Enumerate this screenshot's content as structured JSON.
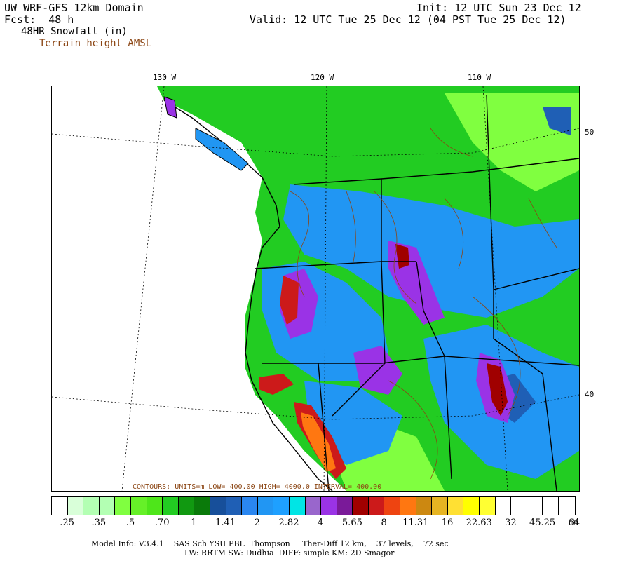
{
  "header": {
    "model_title": "UW WRF-GFS 12km Domain",
    "fcst_label": "Fcst:  48 h",
    "field_label": "48HR Snowfall (in)",
    "terrain_label": "Terrain height AMSL",
    "init_text": "Init: 12 UTC Sun 23 Dec 12",
    "valid_text": "Valid: 12 UTC Tue 25 Dec 12 (04 PST Tue 25 Dec 12)"
  },
  "map": {
    "lon_labels": [
      "130 W",
      "120 W",
      "110 W"
    ],
    "lat_labels": [
      "50",
      "40"
    ],
    "contour_note": "CONTOURS: UNITS=m  LOW= 400.00  HIGH= 4000.0  INTERVAL= 400.00"
  },
  "scale": {
    "colors": [
      "#ffffff",
      "#d9ffd9",
      "#b3ffb3",
      "#b3ffb3",
      "#80ff40",
      "#66f028",
      "#4ee61a",
      "#22cc22",
      "#119911",
      "#0a7a0a",
      "#174f9a",
      "#1f5fb5",
      "#2a86f0",
      "#2196f3",
      "#1ea0ff",
      "#00e5e5",
      "#9966cc",
      "#9a33e6",
      "#7a1a99",
      "#a00000",
      "#cc1a1a",
      "#ee4411",
      "#ff7711",
      "#cc8811",
      "#e6b422",
      "#ffe033",
      "#ffff00",
      "#ffff33",
      "#ffffff",
      "#ffffff",
      "#ffffff",
      "#ffffff",
      "#ffffff"
    ],
    "labels": [
      ".25",
      ".35",
      ".5",
      ".70",
      "1",
      "1.41",
      "2",
      "2.82",
      "4",
      "5.65",
      "8",
      "11.31",
      "16",
      "22.63",
      "32",
      "45.25",
      "64",
      "in"
    ]
  },
  "footer": {
    "line1": "Model Info: V3.4.1    SAS Sch YSU PBL  Thompson     Ther-Diff 12 km,    37 levels,    72 sec",
    "line2": "LW: RRTM SW: Dudhia  DIFF: simple KM: 2D Smagor"
  }
}
